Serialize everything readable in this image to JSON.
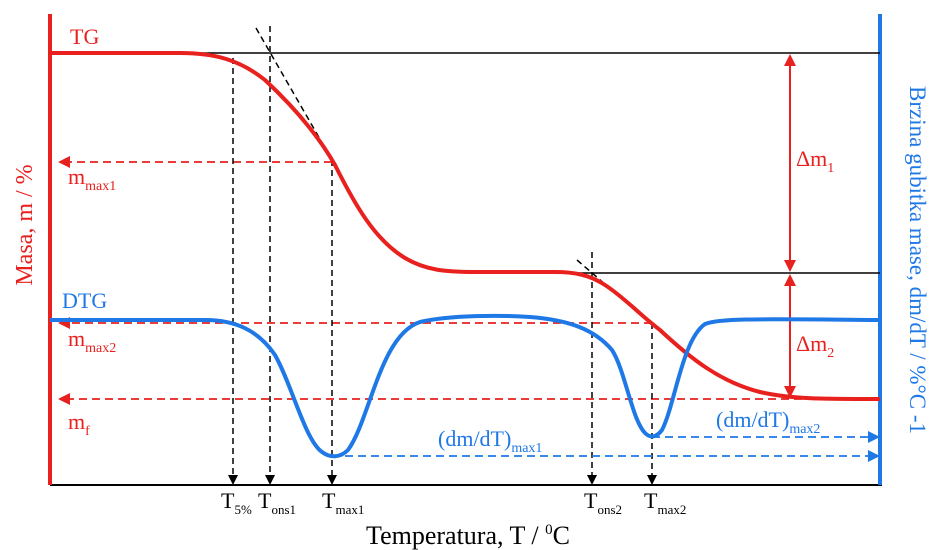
{
  "colors": {
    "tg": "#e8201e",
    "dtg": "#1e78e6",
    "black": "#000000"
  },
  "labels": {
    "tg": "TG",
    "dtg": "DTG",
    "y_left": "Masa, m / %",
    "y_right": "Brzina gubitka mase, dm/dT / %°C -1",
    "x_axis_main": "Temperatura, T / ",
    "x_axis_sup": "0",
    "x_axis_unit": "C",
    "mmax1_main": "m",
    "mmax1_sub": "max1",
    "mmax2_main": "m",
    "mmax2_sub": "max2",
    "mf_main": "m",
    "mf_sub": "f",
    "dm1_main": "Δm",
    "dm1_sub": "1",
    "dm2_main": "Δm",
    "dm2_sub": "2",
    "dmdt1_main": "(dm/dT)",
    "dmdt1_sub": "max1",
    "dmdt2_main": "(dm/dT)",
    "dmdt2_sub": "max2",
    "t5_main": "T",
    "t5_sub": "5%",
    "tons1_main": "T",
    "tons1_sub": "ons1",
    "tmax1_main": "T",
    "tmax1_sub": "max1",
    "tons2_main": "T",
    "tons2_sub": "ons2",
    "tmax2_main": "T",
    "tmax2_sub": "max2"
  }
}
